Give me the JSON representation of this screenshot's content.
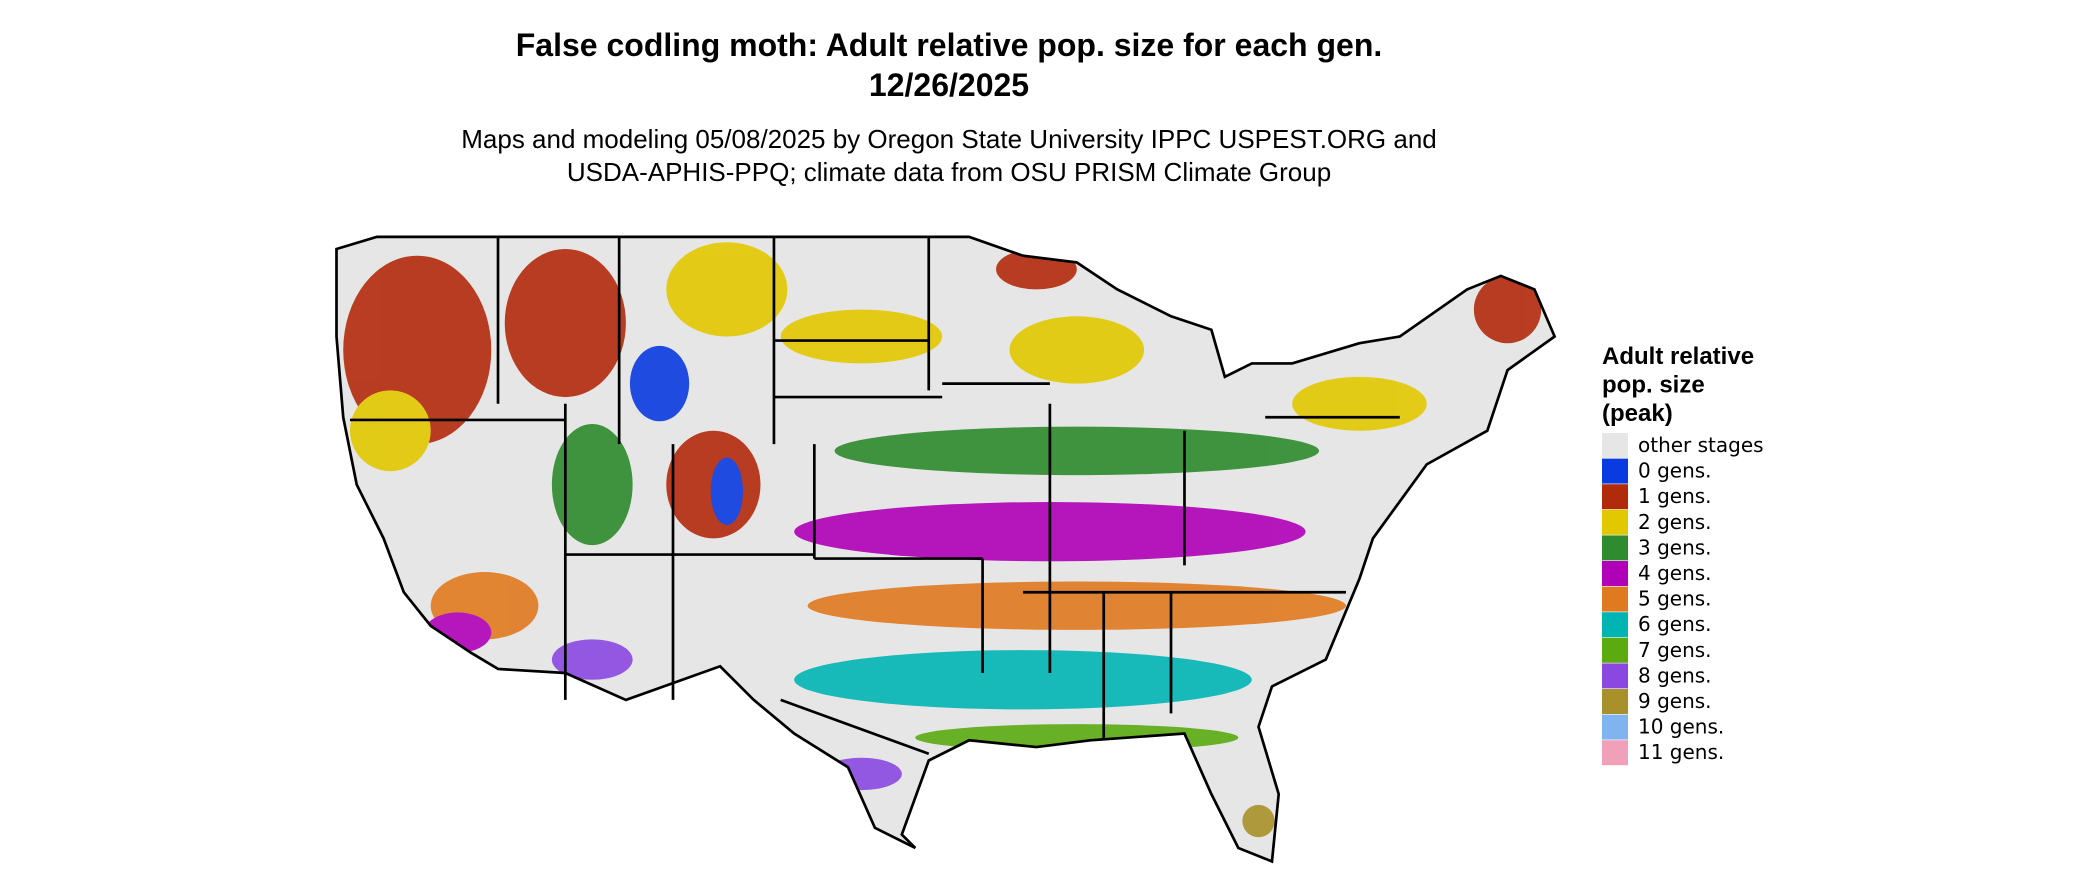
{
  "title": [
    "False codling moth: Adult relative pop. size for each gen.",
    "12/26/2025"
  ],
  "subtitle": [
    "Maps and modeling 05/08/2025 by Oregon State University IPPC USPEST.ORG and",
    "USDA-APHIS-PPQ; climate data from OSU PRISM Climate Group"
  ],
  "legend": {
    "title": [
      "Adult relative",
      "pop. size",
      "(peak)"
    ],
    "items": [
      {
        "label": "other stages",
        "color": "#e6e6e6"
      },
      {
        "label": "0 gens.",
        "color": "#0a3be0"
      },
      {
        "label": "1 gens.",
        "color": "#b22a0c"
      },
      {
        "label": "2 gens.",
        "color": "#e2c800"
      },
      {
        "label": "3 gens.",
        "color": "#2e8b2e"
      },
      {
        "label": "4 gens.",
        "color": "#b000b8"
      },
      {
        "label": "5 gens.",
        "color": "#e07a20"
      },
      {
        "label": "6 gens.",
        "color": "#00b4b4"
      },
      {
        "label": "7 gens.",
        "color": "#5aaa10"
      },
      {
        "label": "8 gens.",
        "color": "#8a48e0"
      },
      {
        "label": "9 gens.",
        "color": "#a8902a"
      },
      {
        "label": "10 gens.",
        "color": "#80b4f0"
      },
      {
        "label": "11 gens.",
        "color": "#f0a0b8"
      }
    ]
  }
}
